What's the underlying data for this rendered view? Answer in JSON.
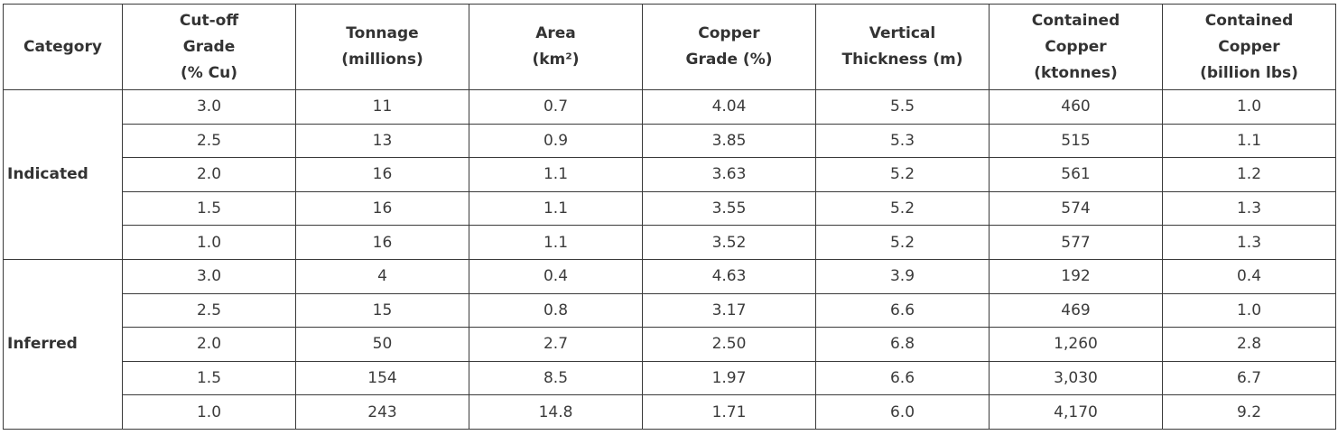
{
  "table": {
    "header": [
      [
        "Category"
      ],
      [
        "Cut-off",
        "Grade",
        "(% Cu)"
      ],
      [
        "Tonnage",
        "(millions)"
      ],
      [
        "Area",
        "(km²)"
      ],
      [
        "Copper",
        "Grade (%)"
      ],
      [
        "Vertical",
        "Thickness (m)"
      ],
      [
        "Contained",
        "Copper",
        "(ktonnes)"
      ],
      [
        "Contained",
        "Copper",
        "(billion lbs)"
      ]
    ],
    "groups": [
      {
        "category": "Indicated",
        "rows": [
          [
            "3.0",
            "11",
            "0.7",
            "4.04",
            "5.5",
            "460",
            "1.0"
          ],
          [
            "2.5",
            "13",
            "0.9",
            "3.85",
            "5.3",
            "515",
            "1.1"
          ],
          [
            "2.0",
            "16",
            "1.1",
            "3.63",
            "5.2",
            "561",
            "1.2"
          ],
          [
            "1.5",
            "16",
            "1.1",
            "3.55",
            "5.2",
            "574",
            "1.3"
          ],
          [
            "1.0",
            "16",
            "1.1",
            "3.52",
            "5.2",
            "577",
            "1.3"
          ]
        ]
      },
      {
        "category": "Inferred",
        "rows": [
          [
            "3.0",
            "4",
            "0.4",
            "4.63",
            "3.9",
            "192",
            "0.4"
          ],
          [
            "2.5",
            "15",
            "0.8",
            "3.17",
            "6.6",
            "469",
            "1.0"
          ],
          [
            "2.0",
            "50",
            "2.7",
            "2.50",
            "6.8",
            "1,260",
            "2.8"
          ],
          [
            "1.5",
            "154",
            "8.5",
            "1.97",
            "6.6",
            "3,030",
            "6.7"
          ],
          [
            "1.0",
            "243",
            "14.8",
            "1.71",
            "6.0",
            "4,170",
            "9.2"
          ]
        ]
      }
    ]
  }
}
